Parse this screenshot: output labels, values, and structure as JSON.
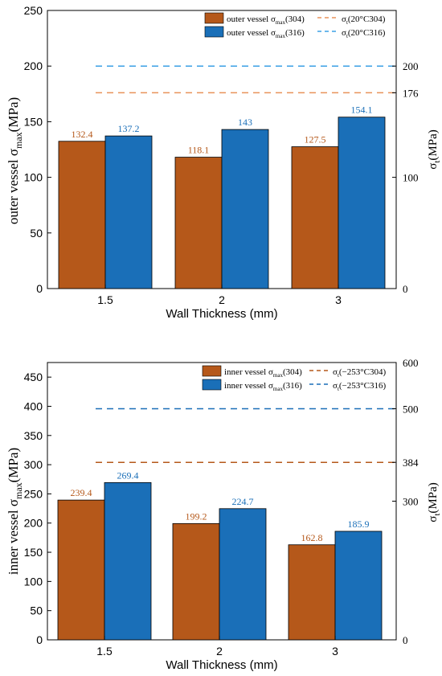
{
  "colors": {
    "s304": "#b5581a",
    "s316": "#1a6fb8",
    "line304": "#e8925a",
    "line316": "#3ba0e6"
  },
  "chart_data": [
    {
      "type": "bar",
      "categories": [
        "1.5",
        "2",
        "3"
      ],
      "series": [
        {
          "name": "outer vessel σmax(304)",
          "values": [
            132.4,
            118.1,
            127.5
          ],
          "labels": [
            "132.4",
            "118.1",
            "127.5"
          ]
        },
        {
          "name": "outer vessel σmax(316)",
          "values": [
            137.2,
            143,
            154.1
          ],
          "labels": [
            "137.2",
            "143",
            "154.1"
          ]
        }
      ],
      "reference_lines": [
        {
          "name": "σt(20°C304)",
          "value": 176,
          "label": "176"
        },
        {
          "name": "σt(20°C316)",
          "value": 200,
          "label": "200"
        }
      ],
      "xlabel": "Wall Thickness (mm)",
      "ylabel": "outer vessel σmax(MPa)",
      "y2label": "σt(MPa)",
      "ylim": [
        0,
        250
      ],
      "yticks": [
        "0",
        "50",
        "100",
        "150",
        "200",
        "250"
      ],
      "y2ticks": [
        "0",
        "100"
      ],
      "legend": {
        "bar304": {
          "pre": "outer vessel σ",
          "sub": "max",
          "post": "(304)"
        },
        "bar316": {
          "pre": "outer vessel σ",
          "sub": "max",
          "post": "(316)"
        },
        "line304": {
          "pre": "σ",
          "sub": "t",
          "post": "(20°C304)"
        },
        "line316": {
          "pre": "σ",
          "sub": "t",
          "post": "(20°C316)"
        }
      },
      "legend_position": "top-right"
    },
    {
      "type": "bar",
      "categories": [
        "1.5",
        "2",
        "3"
      ],
      "series": [
        {
          "name": "inner vessel σmax(304)",
          "values": [
            239.4,
            199.2,
            162.8
          ],
          "labels": [
            "239.4",
            "199.2",
            "162.8"
          ]
        },
        {
          "name": "inner vessel σmax(316)",
          "values": [
            269.4,
            224.7,
            185.9
          ],
          "labels": [
            "269.4",
            "224.7",
            "185.9"
          ]
        }
      ],
      "reference_lines": [
        {
          "name": "σt(−253°C304)",
          "value": 384,
          "label": "384"
        },
        {
          "name": "σt(−253°C316)",
          "value": 500,
          "label": "500"
        }
      ],
      "xlabel": "Wall Thickness (mm)",
      "ylabel": "inner vessel σmax(MPa)",
      "y2label": "σt(MPa)",
      "ylim": [
        0,
        475
      ],
      "y2lim": [
        0,
        600
      ],
      "yticks": [
        "0",
        "50",
        "100",
        "150",
        "200",
        "250",
        "300",
        "350",
        "400",
        "450"
      ],
      "y2ticks": [
        "0",
        "300",
        "600"
      ],
      "legend": {
        "bar304": {
          "pre": "inner vessel σ",
          "sub": "max",
          "post": "(304)"
        },
        "bar316": {
          "pre": "inner vessel σ",
          "sub": "max",
          "post": "(316)"
        },
        "line304": {
          "pre": "σ",
          "sub": "t",
          "post": "(−253°C304)"
        },
        "line316": {
          "pre": "σ",
          "sub": "t",
          "post": "(−253°C316)"
        }
      },
      "legend_position": "top-right"
    }
  ]
}
